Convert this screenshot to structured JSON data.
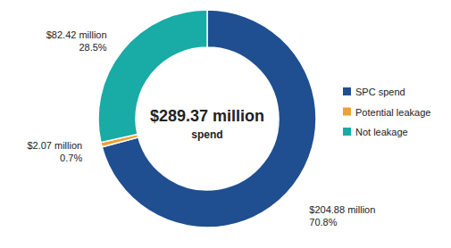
{
  "chart_data": {
    "type": "pie",
    "center_label": "$289.37 million",
    "center_sublabel": "spend",
    "categories": [
      "SPC spend",
      "Potential leakage",
      "Not leakage"
    ],
    "values": [
      70.8,
      0.7,
      28.5
    ],
    "value_labels": [
      "70.8%",
      "0.7%",
      "28.5%"
    ],
    "amounts": [
      204.88,
      2.07,
      82.42
    ],
    "amount_labels": [
      "$204.88 million",
      "$2.07 million",
      "$82.42 million"
    ],
    "colors": [
      "#1f4e91",
      "#f0a030",
      "#19aba6"
    ],
    "data_labels": true,
    "legend": "right"
  }
}
